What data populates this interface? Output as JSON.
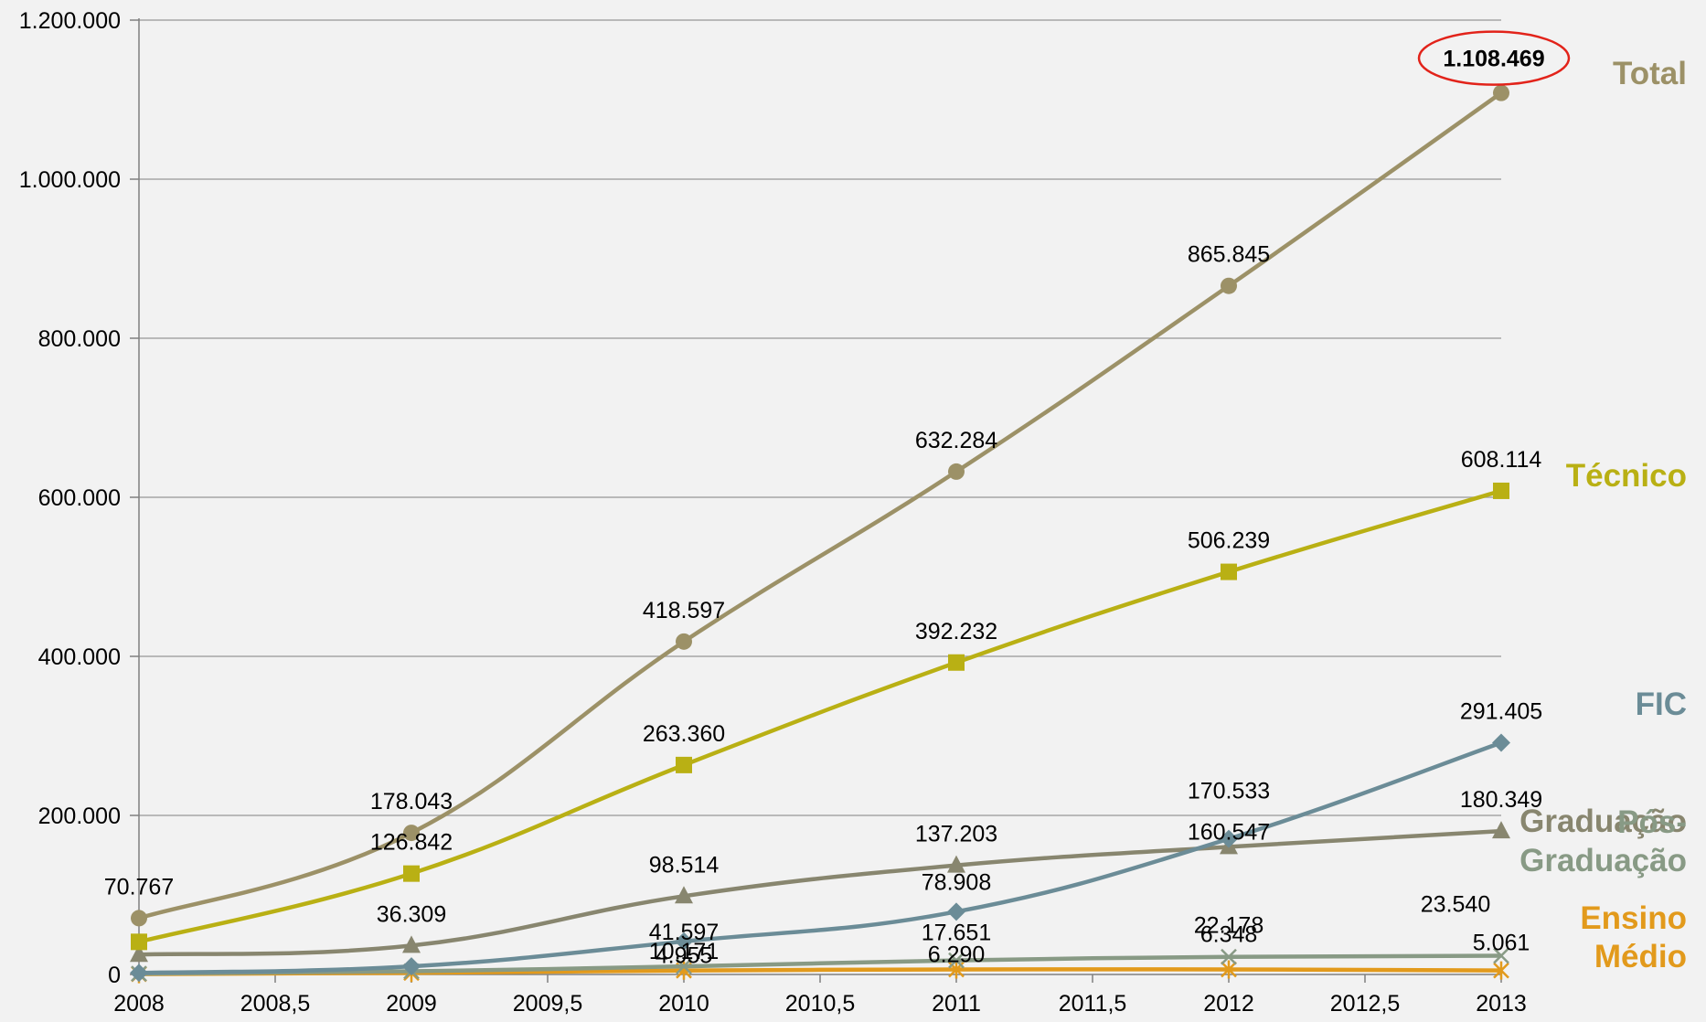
{
  "chart_data": {
    "type": "line",
    "x": [
      2008,
      2009,
      2010,
      2011,
      2012,
      2013
    ],
    "xlim": [
      2008,
      2013
    ],
    "ylim": [
      0,
      1200000
    ],
    "x_ticks": [
      "2008",
      "2008,5",
      "2009",
      "2009,5",
      "2010",
      "2010,5",
      "2011",
      "2011,5",
      "2012",
      "2012,5",
      "2013"
    ],
    "y_ticks": [
      "0",
      "200.000",
      "400.000",
      "600.000",
      "800.000",
      "1.000.000",
      "1.200.000"
    ],
    "grid": "horizontal",
    "legend": "right, labels at line ends",
    "series": [
      {
        "name": "Total",
        "name_lines": [
          "Total"
        ],
        "color": "#9c9167",
        "marker": "circle",
        "values": [
          70767,
          178043,
          418597,
          632284,
          865845,
          1108469
        ],
        "labels": [
          "70.767",
          "178.043",
          "418.597",
          "632.284",
          "865.845",
          "1.108.469"
        ]
      },
      {
        "name": "Técnico",
        "name_lines": [
          "Técnico"
        ],
        "color": "#b9b014",
        "marker": "square",
        "values": [
          41000,
          126842,
          263360,
          392232,
          506239,
          608114
        ],
        "labels": [
          "",
          "126.842",
          "263.360",
          "392.232",
          "506.239",
          "608.114"
        ]
      },
      {
        "name": "FIC",
        "name_lines": [
          "FIC"
        ],
        "color": "#6b8c97",
        "marker": "diamond",
        "values": [
          2000,
          10171,
          41597,
          78908,
          170533,
          291405
        ],
        "labels": [
          "",
          "",
          "41.597",
          "78.908",
          "170.533",
          "291.405"
        ]
      },
      {
        "name": "Graduação",
        "name_lines": [
          "Graduação"
        ],
        "color": "#88866f",
        "marker": "triangle",
        "values": [
          25000,
          36309,
          98514,
          137203,
          160547,
          180349
        ],
        "labels": [
          "",
          "36.309",
          "98.514",
          "137.203",
          "160.547",
          "180.349"
        ]
      },
      {
        "name": "Pós-Graduação",
        "name_lines": [
          "Pós-",
          "Graduação"
        ],
        "color": "#889a85",
        "marker": "x",
        "values": [
          1000,
          4000,
          10171,
          17651,
          22178,
          23540
        ],
        "labels": [
          "",
          "",
          "10.171",
          "17.651",
          "22.178",
          "23.540"
        ]
      },
      {
        "name": "Ensino Médio",
        "name_lines": [
          "Ensino",
          "Médio"
        ],
        "color": "#e29a1c",
        "marker": "star",
        "values": [
          500,
          2000,
          4955,
          6290,
          6348,
          5061
        ],
        "labels": [
          "",
          "",
          "4.955",
          "6.290",
          "6.348",
          "5.061"
        ]
      }
    ],
    "annotation": {
      "series": "Total",
      "label": "1.108.469",
      "shape": "ellipse",
      "color": "#e2231a"
    }
  }
}
